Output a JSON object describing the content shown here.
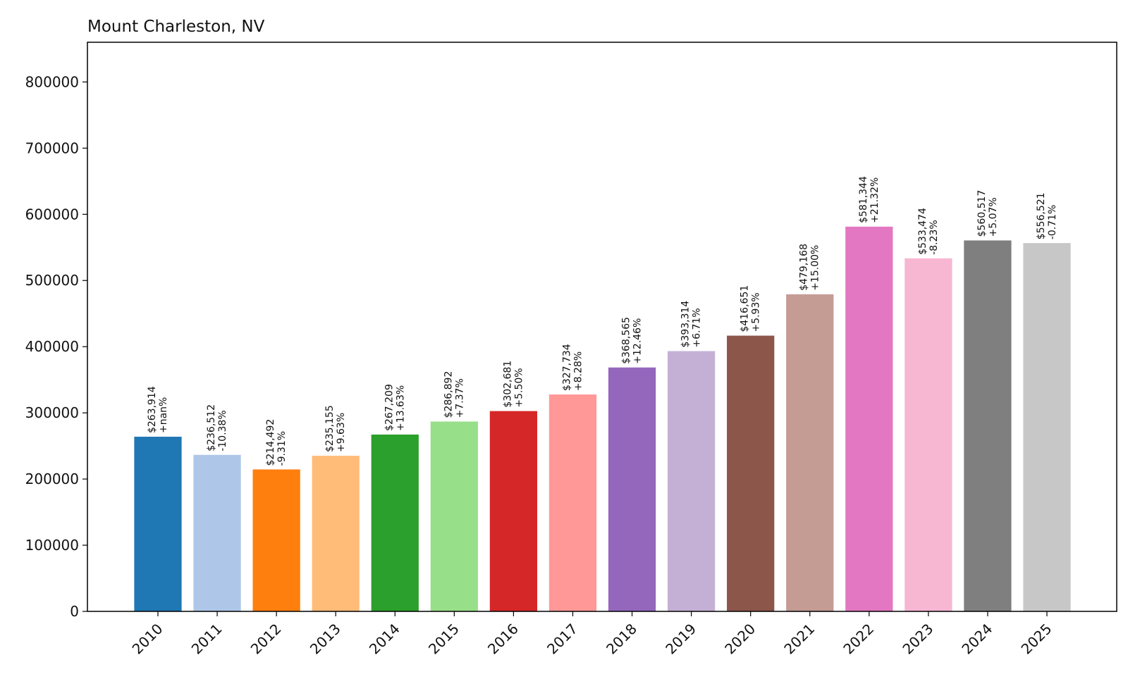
{
  "chart_data": {
    "type": "bar",
    "title": "Mount Charleston, NV",
    "xlabel": "",
    "ylabel": "",
    "ylim": [
      0,
      860000
    ],
    "yticks": [
      0,
      100000,
      200000,
      300000,
      400000,
      500000,
      600000,
      700000,
      800000
    ],
    "ytick_labels": [
      "0",
      "100000",
      "200000",
      "300000",
      "400000",
      "500000",
      "600000",
      "700000",
      "800000"
    ],
    "grid": false,
    "legend": "none",
    "categories": [
      "2010",
      "2011",
      "2012",
      "2013",
      "2014",
      "2015",
      "2016",
      "2017",
      "2018",
      "2019",
      "2020",
      "2021",
      "2022",
      "2023",
      "2024",
      "2025"
    ],
    "values": [
      263914,
      236512,
      214492,
      235155,
      267209,
      286892,
      302681,
      327734,
      368565,
      393314,
      416651,
      479168,
      581344,
      533474,
      560517,
      556521
    ],
    "value_labels": [
      "$263,914",
      "$236,512",
      "$214,492",
      "$235,155",
      "$267,209",
      "$286,892",
      "$302,681",
      "$327,734",
      "$368,565",
      "$393,314",
      "$416,651",
      "$479,168",
      "$581,344",
      "$533,474",
      "$560,517",
      "$556,521"
    ],
    "change_labels": [
      "+nan%",
      "-10.38%",
      "-9.31%",
      "+9.63%",
      "+13.63%",
      "+7.37%",
      "+5.50%",
      "+8.28%",
      "+12.46%",
      "+6.71%",
      "+5.93%",
      "+15.00%",
      "+21.32%",
      "-8.23%",
      "+5.07%",
      "-0.71%"
    ],
    "colors": [
      "#1f77b4",
      "#aec7e8",
      "#ff7f0e",
      "#ffbb78",
      "#2ca02c",
      "#98df8a",
      "#d62728",
      "#ff9896",
      "#9467bd",
      "#c5b0d5",
      "#8c564b",
      "#c49c94",
      "#e377c2",
      "#f7b6d2",
      "#7f7f7f",
      "#c7c7c7"
    ]
  }
}
